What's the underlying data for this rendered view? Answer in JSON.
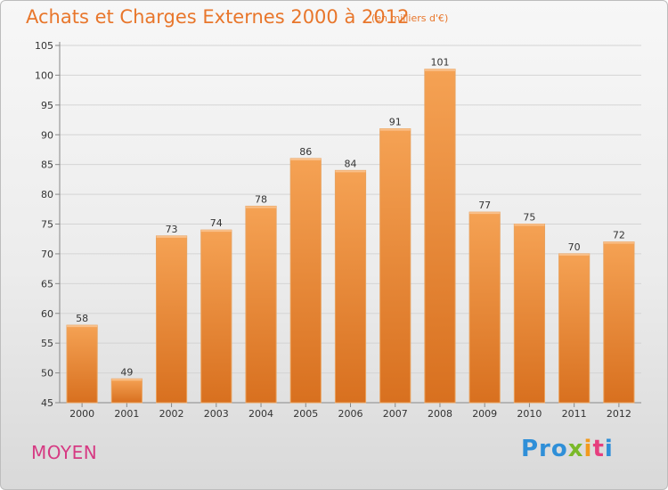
{
  "header": {
    "title": "Achats et Charges Externes 2000 à 2012",
    "subtitle": "(en milliers d'€)"
  },
  "footer": {
    "label": "MOYEN",
    "brand": [
      "Pro",
      "x",
      "i",
      "t",
      "i"
    ]
  },
  "colors": {
    "title": "#e8762b",
    "bar_top": "#f5a254",
    "bar_bottom": "#d8701f",
    "footer_label": "#d63a83"
  },
  "chart_data": {
    "type": "bar",
    "categories": [
      "2000",
      "2001",
      "2002",
      "2003",
      "2004",
      "2005",
      "2006",
      "2007",
      "2008",
      "2009",
      "2010",
      "2011",
      "2012"
    ],
    "values": [
      58,
      49,
      73,
      74,
      78,
      86,
      84,
      91,
      101,
      77,
      75,
      70,
      72
    ],
    "title": "Achats et Charges Externes 2000 à 2012",
    "xlabel": "",
    "ylabel": "",
    "ylim": [
      45,
      105
    ],
    "yticks": [
      45,
      50,
      55,
      60,
      65,
      70,
      75,
      80,
      85,
      90,
      95,
      100,
      105
    ],
    "grid": true,
    "data_labels": true
  }
}
